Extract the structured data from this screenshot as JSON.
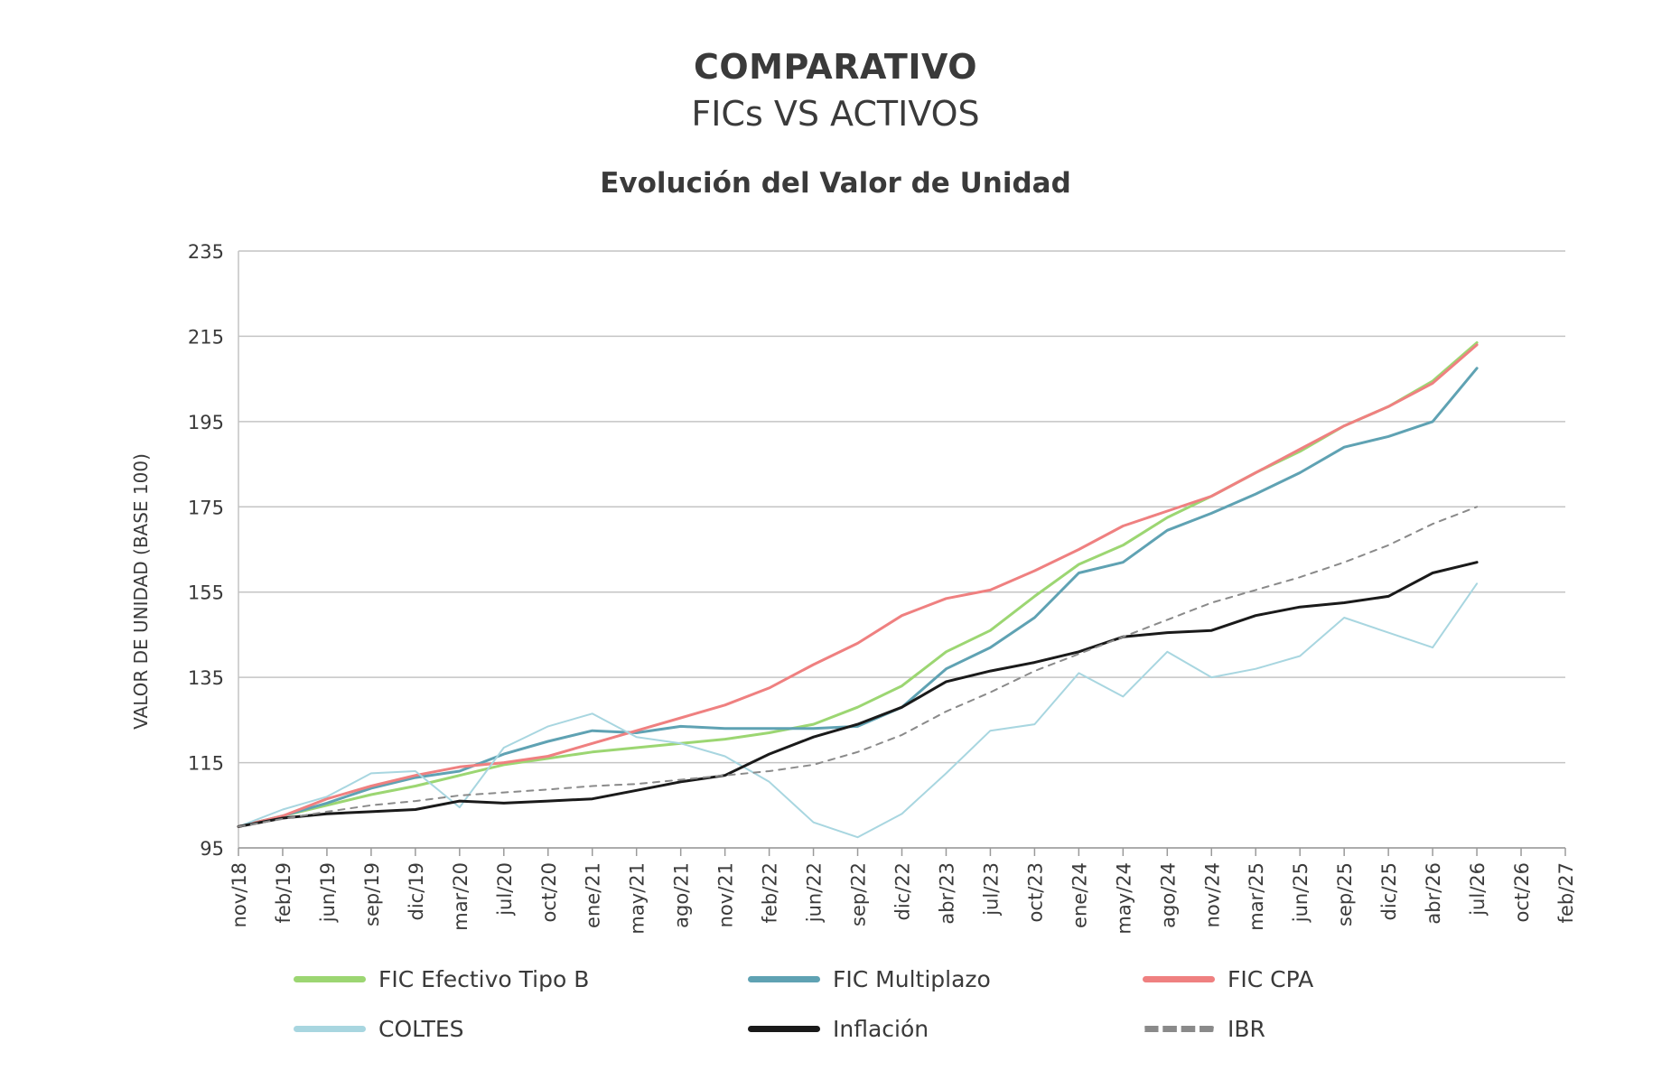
{
  "header": {
    "title": "COMPARATIVO",
    "subtitle": "FICs VS ACTIVOS"
  },
  "chart_data": {
    "type": "line",
    "title": "Evolución del Valor de Unidad",
    "xlabel": "",
    "ylabel": "VALOR DE UNIDAD (BASE 100)",
    "ylim": [
      95,
      235
    ],
    "yticks": [
      95,
      115,
      135,
      155,
      175,
      195,
      215,
      235
    ],
    "xticks": [
      "nov/18",
      "feb/19",
      "jun/19",
      "sep/19",
      "dic/19",
      "mar/20",
      "jul/20",
      "oct/20",
      "ene/21",
      "may/21",
      "ago/21",
      "nov/21",
      "feb/22",
      "jun/22",
      "sep/22",
      "dic/22",
      "abr/23",
      "jul/23",
      "oct/23",
      "ene/24",
      "may/24",
      "ago/24",
      "nov/24",
      "mar/25",
      "jun/25",
      "sep/25",
      "dic/25",
      "abr/26",
      "jul/26",
      "oct/26",
      "feb/27"
    ],
    "grid": "horizontal",
    "legend": "bottom",
    "x": [
      "nov/18",
      "feb/19",
      "jun/19",
      "sep/19",
      "dic/19",
      "mar/20",
      "jul/20",
      "oct/20",
      "ene/21",
      "may/21",
      "ago/21",
      "nov/21",
      "feb/22",
      "jun/22",
      "sep/22",
      "dic/22",
      "abr/23",
      "jul/23",
      "oct/23",
      "ene/24",
      "may/24",
      "ago/24",
      "nov/24",
      "mar/25",
      "jun/25",
      "sep/25",
      "dic/25",
      "abr/26",
      "jul/26"
    ],
    "series": [
      {
        "name": "FIC Efectivo Tipo B",
        "color": "#9cd672",
        "style": "solid",
        "values": [
          100,
          102.5,
          105,
          107.5,
          109.5,
          112,
          114.5,
          116,
          117.5,
          118.5,
          119.5,
          120.5,
          122,
          124,
          128,
          133,
          141,
          146,
          154,
          161.5,
          166,
          172.5,
          177.5,
          183,
          188,
          194,
          198.5,
          204.5,
          213.5
        ]
      },
      {
        "name": "FIC Multiplazo",
        "color": "#5fa2b3",
        "style": "solid",
        "values": [
          100,
          102.5,
          105.5,
          109,
          111.5,
          113,
          117,
          120,
          122.5,
          122,
          123.5,
          123,
          123,
          123,
          123.5,
          128,
          137,
          142,
          149,
          159.5,
          162,
          169.5,
          173.5,
          178,
          183,
          189,
          191.5,
          195,
          207.5
        ]
      },
      {
        "name": "FIC CPA",
        "color": "#ef8080",
        "style": "solid",
        "values": [
          100,
          102.5,
          106.5,
          109.5,
          112,
          114,
          115,
          116.5,
          119.5,
          122.5,
          125.5,
          128.5,
          132.5,
          138,
          143,
          149.5,
          153.5,
          155.5,
          160,
          165,
          170.5,
          174,
          177.5,
          183,
          188.5,
          194,
          198.5,
          204,
          213
        ]
      },
      {
        "name": "COLTES",
        "color": "#a8d6e0",
        "style": "solid",
        "values": [
          100,
          104,
          107,
          112.5,
          113,
          104.5,
          118.5,
          123.5,
          126.5,
          121,
          119.5,
          116.5,
          110.5,
          101,
          97.5,
          103,
          112.5,
          122.5,
          124,
          136,
          130.5,
          141,
          135,
          137,
          140,
          149,
          145.5,
          142,
          157
        ]
      },
      {
        "name": "Inflación",
        "color": "#1a1a1a",
        "style": "solid",
        "values": [
          100,
          102,
          103,
          103.5,
          104,
          106,
          105.5,
          106,
          106.5,
          108.5,
          110.5,
          112,
          117,
          121,
          124,
          128,
          134,
          136.5,
          138.5,
          141,
          144.5,
          145.5,
          146,
          149.5,
          151.5,
          152.5,
          154,
          159.5,
          162
        ]
      },
      {
        "name": "IBR",
        "color": "#8a8a8a",
        "style": "dashed",
        "values": [
          100,
          101.8,
          103.5,
          105,
          106,
          107.3,
          108,
          108.7,
          109.5,
          110,
          111,
          112,
          113,
          114.5,
          117.5,
          121.5,
          127,
          131.5,
          136.5,
          140.5,
          144.5,
          148.5,
          152.5,
          155.5,
          158.5,
          162,
          166,
          171,
          175
        ]
      }
    ]
  }
}
